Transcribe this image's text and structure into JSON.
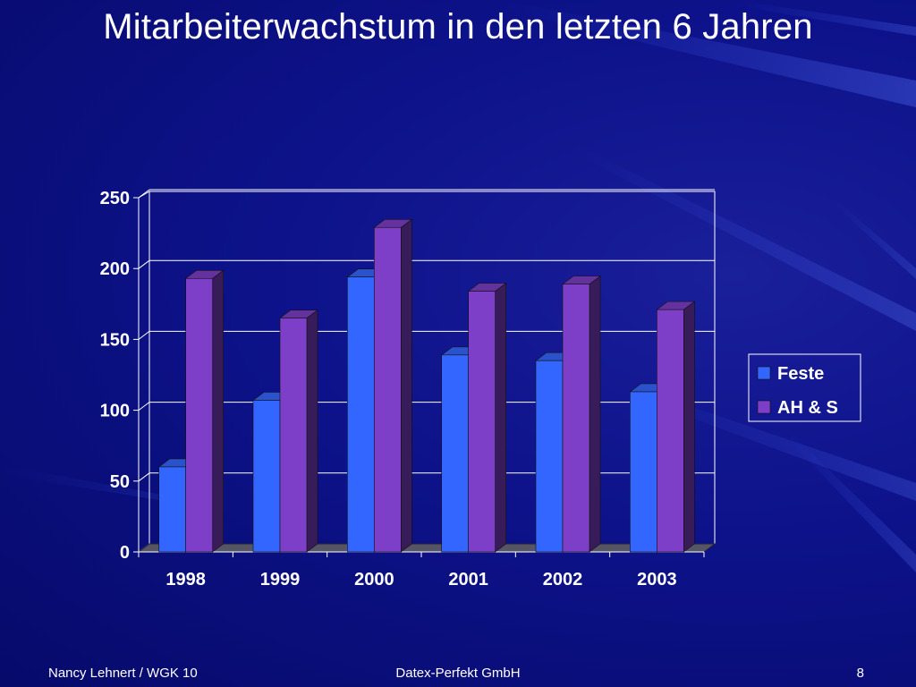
{
  "slide": {
    "title": "Mitarbeiterwachstum in den letzten 6 Jahren"
  },
  "footer": {
    "left": "Nancy Lehnert / WGK 10",
    "center": "Datex-Perfekt GmbH",
    "page": "8"
  },
  "colors": {
    "background": "#0d128a",
    "feste": "#3366ff",
    "ah_s": "#7d3fc7",
    "grid": "#ffffff"
  },
  "chart_data": {
    "type": "bar",
    "categories": [
      "1998",
      "1999",
      "2000",
      "2001",
      "2002",
      "2003"
    ],
    "series": [
      {
        "name": "Feste",
        "values": [
          60,
          107,
          194,
          139,
          135,
          113
        ]
      },
      {
        "name": "AH & S",
        "values": [
          193,
          165,
          229,
          184,
          189,
          171
        ]
      }
    ],
    "ylim": [
      0,
      250
    ],
    "yticks": [
      0,
      50,
      100,
      150,
      200,
      250
    ],
    "grid": true,
    "legend_position": "right",
    "style": "3d-clustered-column"
  }
}
